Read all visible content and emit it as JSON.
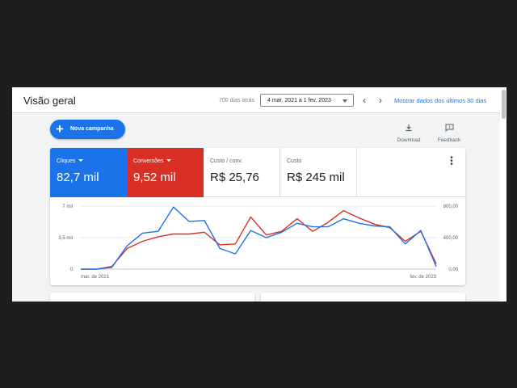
{
  "header": {
    "title": "Visão geral",
    "days_ago": "700 dias atrás",
    "date_range": "4 mar. 2021 a 1 fev. 2023",
    "prev_icon": "chevron-left-icon",
    "next_icon": "chevron-right-icon",
    "show_last_30": "Mostrar dados dos últimos 30 dias"
  },
  "toolbar": {
    "new_campaign": "Nova campanha",
    "download": "Download",
    "feedback": "Feedback"
  },
  "metrics": [
    {
      "label": "Cliques",
      "value": "82,7 mil",
      "color": "#1a73e8",
      "selected": true
    },
    {
      "label": "Conversões",
      "value": "9,52 mil",
      "color": "#d93025",
      "selected": true
    },
    {
      "label": "Custo / conv.",
      "value": "R$ 25,76",
      "selected": false
    },
    {
      "label": "Custo",
      "value": "R$ 245 mil",
      "selected": false
    }
  ],
  "chart_data": {
    "type": "line",
    "x_labels": [
      "mar. de 2021",
      "fev. de 2023"
    ],
    "y_left_ticks": [
      "7 mil",
      "3,5 mil",
      "0"
    ],
    "y_right_ticks": [
      "800,00",
      "400,00",
      "0,00"
    ],
    "ylim_left": [
      0,
      7000
    ],
    "ylim_right": [
      0,
      800
    ],
    "grid": true,
    "series": [
      {
        "name": "Cliques",
        "color": "#1a73e8",
        "values": [
          0,
          0,
          200,
          2600,
          4000,
          4200,
          6900,
          5300,
          5400,
          2300,
          1700,
          4300,
          3500,
          4100,
          5100,
          4700,
          4700,
          5600,
          5100,
          4800,
          4700,
          2800,
          4300,
          300
        ]
      },
      {
        "name": "Conversões",
        "color": "#d93025",
        "values": [
          0,
          0,
          300,
          2300,
          3100,
          3600,
          3900,
          3900,
          4100,
          2700,
          2800,
          5800,
          3800,
          4200,
          5600,
          4200,
          5200,
          6500,
          5700,
          5000,
          4600,
          3100,
          4200,
          600
        ]
      }
    ]
  }
}
